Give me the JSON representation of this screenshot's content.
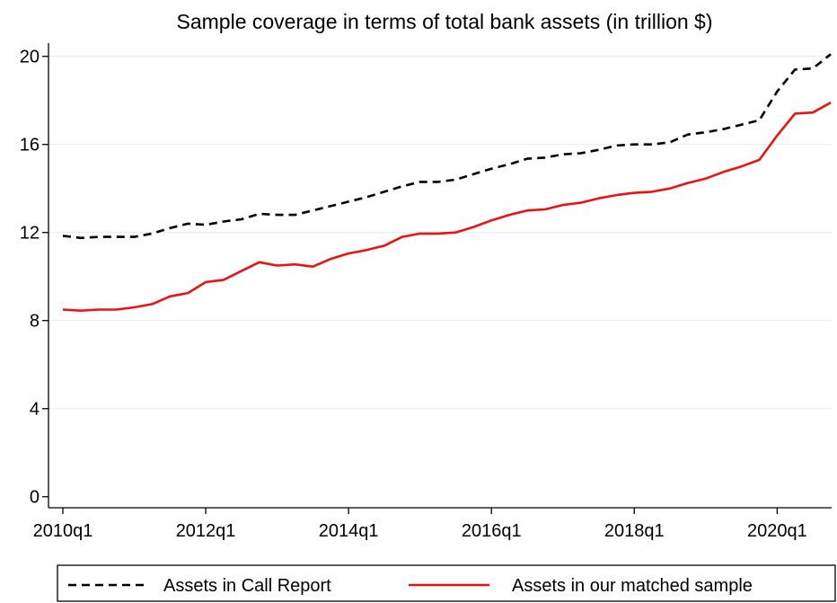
{
  "chart_data": {
    "type": "line",
    "title": "Sample coverage in terms of total bank assets (in trillion $)",
    "xlabel": "",
    "ylabel": "",
    "x_tick_labels": [
      "2010q1",
      "2012q1",
      "2014q1",
      "2016q1",
      "2018q1",
      "2020q1"
    ],
    "y_ticks": [
      0,
      4,
      8,
      12,
      16,
      20
    ],
    "ylim": [
      -0.5,
      20.6
    ],
    "grid": true,
    "legend_position": "bottom",
    "x": [
      "2010q1",
      "2010q2",
      "2010q3",
      "2010q4",
      "2011q1",
      "2011q2",
      "2011q3",
      "2011q4",
      "2012q1",
      "2012q2",
      "2012q3",
      "2012q4",
      "2013q1",
      "2013q2",
      "2013q3",
      "2013q4",
      "2014q1",
      "2014q2",
      "2014q3",
      "2014q4",
      "2015q1",
      "2015q2",
      "2015q3",
      "2015q4",
      "2016q1",
      "2016q2",
      "2016q3",
      "2016q4",
      "2017q1",
      "2017q2",
      "2017q3",
      "2017q4",
      "2018q1",
      "2018q2",
      "2018q3",
      "2018q4",
      "2019q1",
      "2019q2",
      "2019q3",
      "2019q4",
      "2020q1",
      "2020q2",
      "2020q3",
      "2020q4"
    ],
    "series": [
      {
        "name": "Assets in Call Report",
        "color": "#000000",
        "dash": "dashed",
        "values": [
          11.85,
          11.75,
          11.8,
          11.8,
          11.8,
          11.95,
          12.2,
          12.4,
          12.35,
          12.5,
          12.6,
          12.85,
          12.8,
          12.8,
          13.0,
          13.2,
          13.4,
          13.6,
          13.85,
          14.1,
          14.3,
          14.3,
          14.4,
          14.65,
          14.9,
          15.1,
          15.35,
          15.4,
          15.55,
          15.6,
          15.75,
          15.95,
          16.0,
          16.0,
          16.1,
          16.45,
          16.55,
          16.7,
          16.9,
          17.1,
          18.4,
          19.4,
          19.45,
          20.1
        ]
      },
      {
        "name": "Assets in our matched sample",
        "color": "#ee1111",
        "dash": "solid",
        "values": [
          8.5,
          8.45,
          8.5,
          8.5,
          8.6,
          8.75,
          9.1,
          9.25,
          9.75,
          9.85,
          10.25,
          10.65,
          10.5,
          10.55,
          10.45,
          10.8,
          11.05,
          11.2,
          11.4,
          11.8,
          11.95,
          11.95,
          12.0,
          12.25,
          12.55,
          12.8,
          13.0,
          13.05,
          13.25,
          13.35,
          13.55,
          13.7,
          13.8,
          13.85,
          14.0,
          14.25,
          14.45,
          14.75,
          15.0,
          15.3,
          16.4,
          17.4,
          17.45,
          17.9
        ]
      }
    ]
  }
}
